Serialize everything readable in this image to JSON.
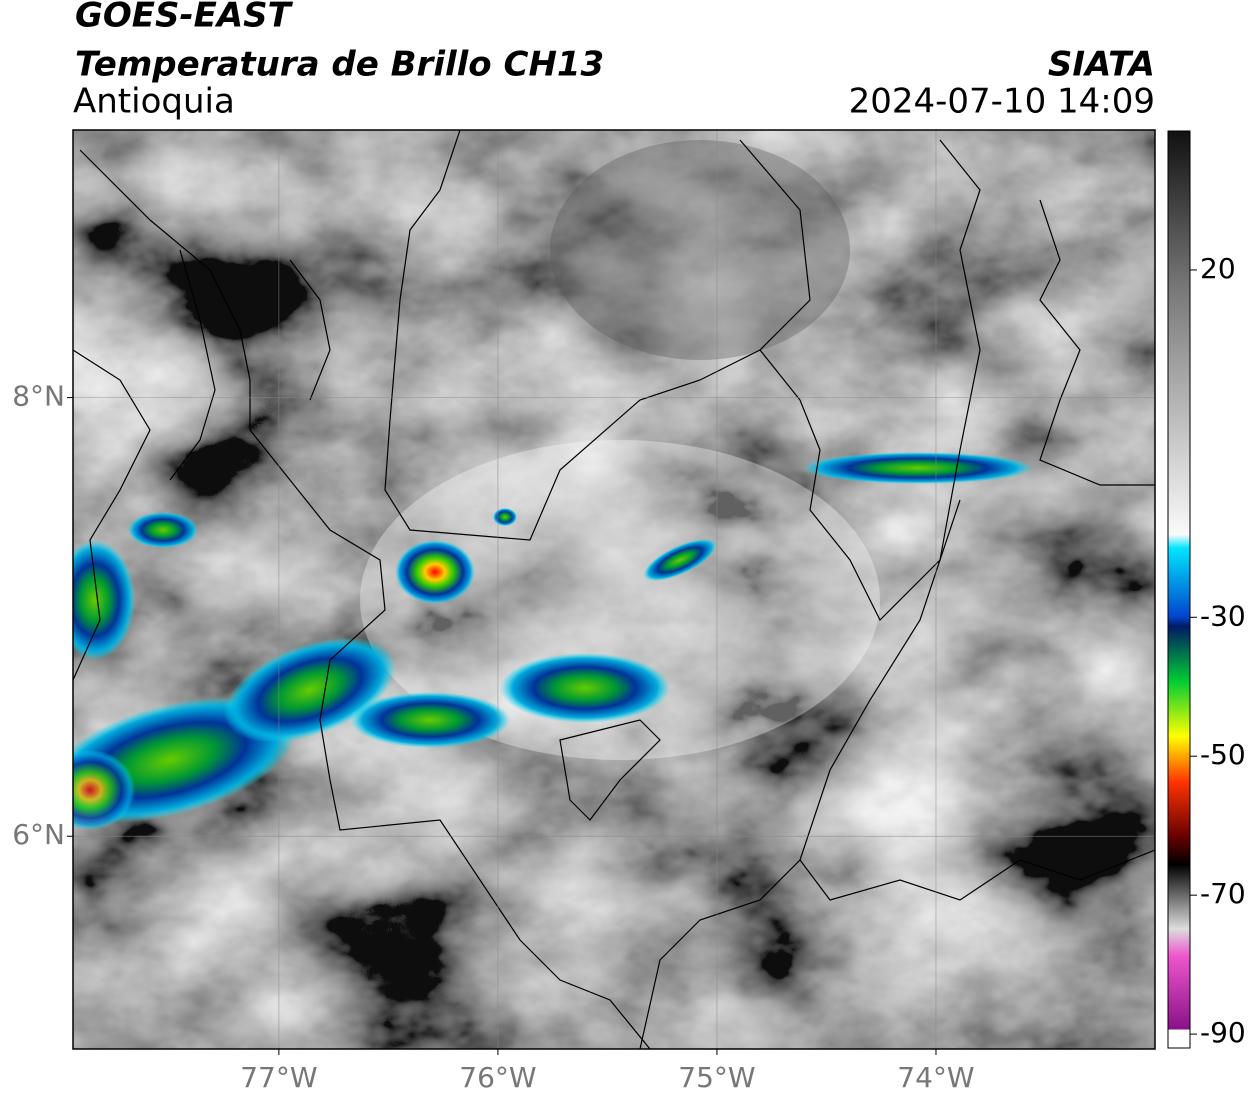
{
  "header": {
    "title": "GOES-EAST",
    "subtitle": "Temperatura de Brillo CH13",
    "region": "Antioquia",
    "source": "SIATA",
    "datetime": "2024-07-10 14:09"
  },
  "map": {
    "xlim": [
      -77.94,
      -73.0
    ],
    "ylim": [
      5.03,
      9.22
    ],
    "xticks": [
      {
        "value": -77,
        "label": "77°W"
      },
      {
        "value": -76,
        "label": "76°W"
      },
      {
        "value": -75,
        "label": "75°W"
      },
      {
        "value": -74,
        "label": "74°W"
      }
    ],
    "yticks": [
      {
        "value": 6,
        "label": "6°N"
      },
      {
        "value": 8,
        "label": "8°N"
      }
    ],
    "grid": true
  },
  "colorbar": {
    "lim": [
      -92,
      40
    ],
    "ticks": [
      20,
      -30,
      -50,
      -70,
      -90
    ]
  }
}
